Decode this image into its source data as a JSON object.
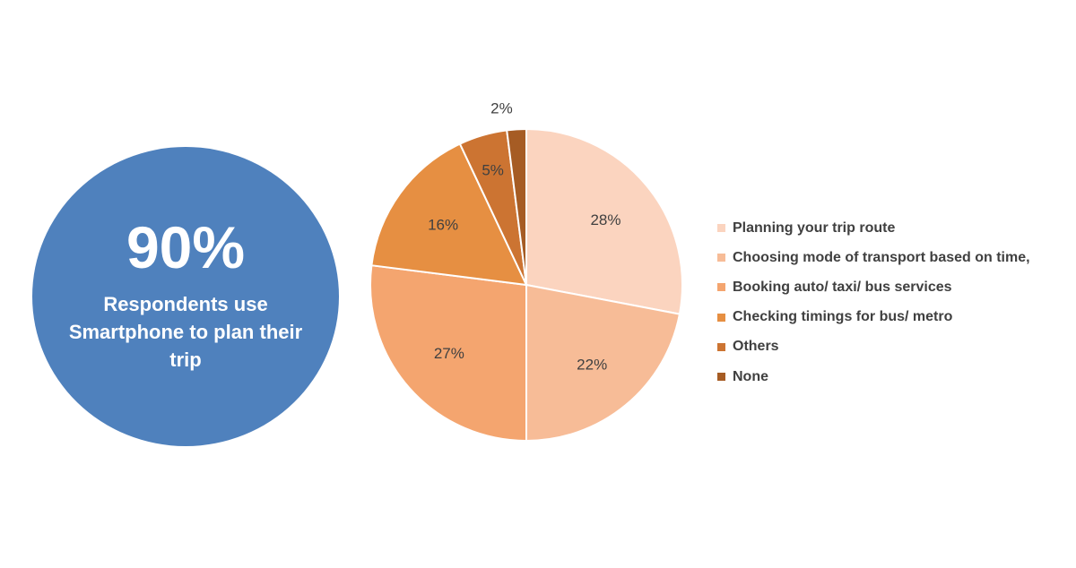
{
  "stat": {
    "value": "90%",
    "caption": "Respondents use Smartphone to plan their trip",
    "color": "#4f81bd"
  },
  "chart_data": {
    "type": "pie",
    "title": "",
    "slices": [
      {
        "label": "Planning your trip route",
        "value": 28,
        "value_label": "28%",
        "color": "#fbd4bf"
      },
      {
        "label": "Choosing mode of transport based on time,",
        "value": 22,
        "value_label": "22%",
        "color": "#f7bc97"
      },
      {
        "label": "Booking auto/ taxi/ bus services",
        "value": 27,
        "value_label": "27%",
        "color": "#f4a56f"
      },
      {
        "label": "Checking timings for bus/ metro",
        "value": 16,
        "value_label": "16%",
        "color": "#e68f42"
      },
      {
        "label": "Others",
        "value": 5,
        "value_label": "5%",
        "color": "#cc7432"
      },
      {
        "label": "None",
        "value": 2,
        "value_label": "2%",
        "color": "#a65c24"
      }
    ],
    "start_angle": "12 o'clock",
    "direction": "clockwise",
    "legend_position": "right"
  }
}
